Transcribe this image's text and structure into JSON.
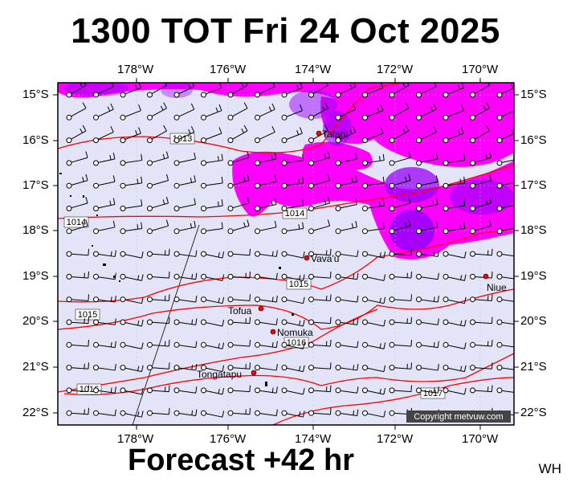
{
  "title": "1300 TOT Fri 24 Oct 2025",
  "footer": "Forecast +42 hr",
  "corner_label": "WH",
  "copyright": "Copyright metvuw.com",
  "longitude_labels": [
    "178°W",
    "176°W",
    "174°W",
    "172°W",
    "170°W"
  ],
  "latitude_labels": [
    "15°S",
    "16°S",
    "17°S",
    "18°S",
    "19°S",
    "20°S",
    "21°S",
    "22°S"
  ],
  "places": [
    "Tafahi",
    "Vava'u",
    "Niue",
    "Tofua",
    "Nomuka",
    "Tongatapu"
  ],
  "isobar_labels": [
    "1013",
    "1014",
    "1014",
    "1015",
    "1015",
    "1016",
    "1016",
    "1017"
  ],
  "colors": {
    "background_sea": "#e4e4f8",
    "rain_light": "#ff00ff",
    "rain_heavy": "#9900ff",
    "isobar": "#ff0000",
    "place_marker": "#ff0000"
  },
  "map_extent": {
    "lon_min": -179.6,
    "lon_max": -169.2,
    "lat_min": -22.25,
    "lat_max": -14.7
  }
}
